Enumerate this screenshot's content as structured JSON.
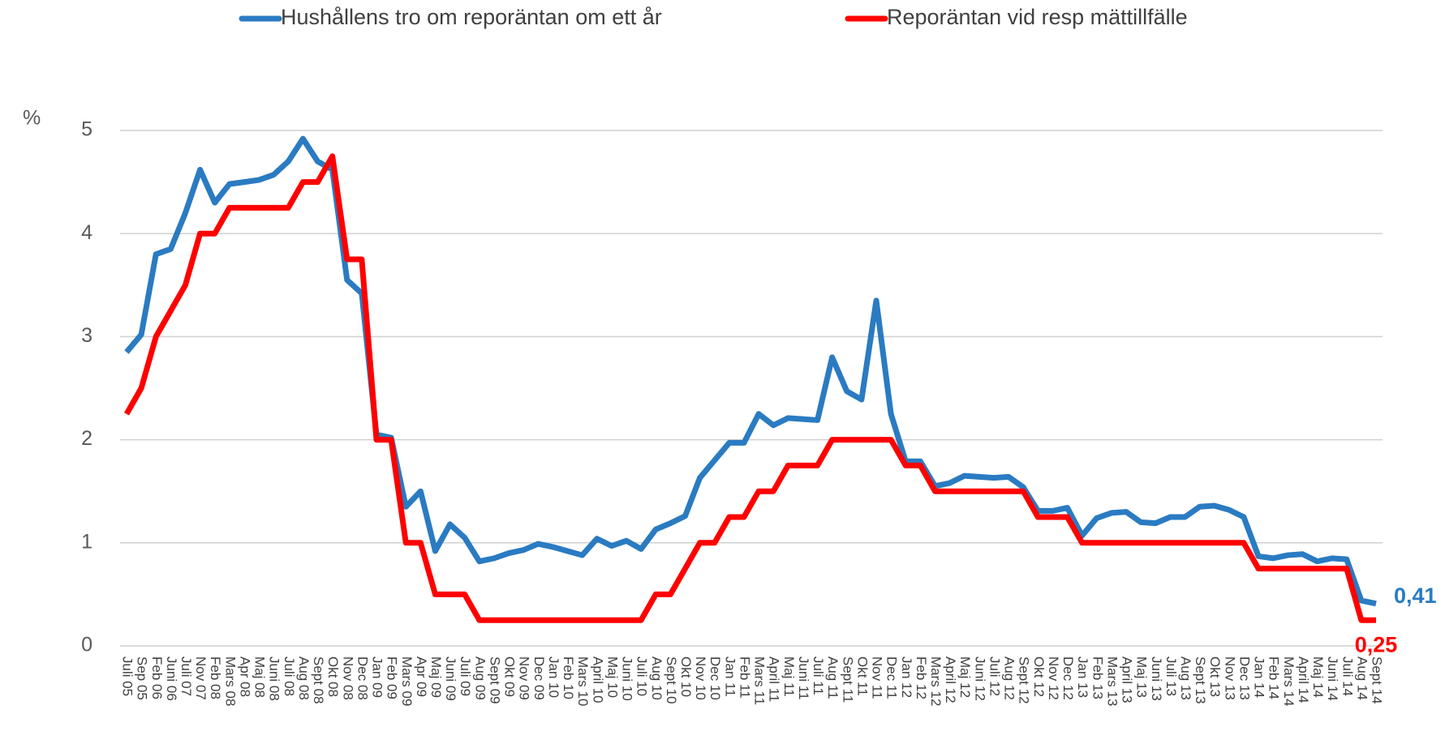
{
  "chart_data": {
    "type": "line",
    "ylabel": "%",
    "legend": "top",
    "grid": true,
    "ylim": [
      0,
      5
    ],
    "yticks": [
      0,
      1,
      2,
      3,
      4,
      5
    ],
    "categories": [
      "Juli 05",
      "Sep 05",
      "Feb 06",
      "Juni 06",
      "Juli 07",
      "Nov 07",
      "Feb 08",
      "Mars 08",
      "Apr 08",
      "Maj 08",
      "Juni 08",
      "Juli 08",
      "Aug 08",
      "Sept 08",
      "Okt 08",
      "Nov 08",
      "Dec 08",
      "Jan 09",
      "Feb 09",
      "Mars 09",
      "Apr 09",
      "Maj 09",
      "Juni 09",
      "Juli 09",
      "Aug 09",
      "Sept 09",
      "Okt 09",
      "Nov 09",
      "Dec 09",
      "Jan 10",
      "Feb 10",
      "Mars 10",
      "April 10",
      "Maj 10",
      "Juni 10",
      "Juli 10",
      "Aug 10",
      "Sept 10",
      "Okt 10",
      "Nov 10",
      "Dec 10",
      "Jan 11",
      "Feb 11",
      "Mars 11",
      "April 11",
      "Maj 11",
      "Juni 11",
      "Juli 11",
      "Aug 11",
      "Sept 11",
      "Okt 11",
      "Nov 11",
      "Dec 11",
      "Jan 12",
      "Feb 12",
      "Mars 12",
      "April 12",
      "Maj 12",
      "Juni 12",
      "Juli 12",
      "Aug 12",
      "Sept 12",
      "Okt 12",
      "Nov 12",
      "Dec 12",
      "Jan 13",
      "Feb 13",
      "Mars 13",
      "April 13",
      "Maj 13",
      "Juni 13",
      "Juli 13",
      "Aug 13",
      "Sept 13",
      "Okt 13",
      "Nov 13",
      "Dec 13",
      "Jan 14",
      "Feb 14",
      "Mars 14",
      "April 14",
      "Maj 14",
      "Juni 14",
      "Juli 14",
      "Aug 14",
      "Sept 14"
    ],
    "series": [
      {
        "name": "Hushållens tro om reporäntan om ett år",
        "color": "#2a7bc2",
        "values": [
          2.85,
          3.02,
          3.8,
          3.85,
          4.2,
          4.62,
          4.3,
          4.48,
          4.5,
          4.52,
          4.57,
          4.7,
          4.92,
          4.7,
          4.62,
          3.55,
          3.42,
          2.05,
          2.02,
          1.35,
          1.5,
          0.92,
          1.18,
          1.05,
          0.82,
          0.85,
          0.9,
          0.93,
          0.99,
          0.96,
          0.92,
          0.88,
          1.04,
          0.97,
          1.02,
          0.94,
          1.13,
          1.19,
          1.26,
          1.63,
          1.8,
          1.97,
          1.97,
          2.25,
          2.14,
          2.21,
          2.2,
          2.19,
          2.8,
          2.47,
          2.39,
          3.35,
          2.25,
          1.79,
          1.79,
          1.55,
          1.58,
          1.65,
          1.64,
          1.63,
          1.64,
          1.54,
          1.31,
          1.31,
          1.34,
          1.07,
          1.24,
          1.29,
          1.3,
          1.2,
          1.19,
          1.25,
          1.25,
          1.35,
          1.36,
          1.32,
          1.25,
          0.87,
          0.85,
          0.88,
          0.89,
          0.82,
          0.85,
          0.84,
          0.44,
          0.41
        ],
        "value_labels": [
          null,
          null,
          null,
          null,
          null,
          null,
          null,
          null,
          null,
          null,
          null,
          null,
          null,
          null,
          null,
          null,
          null,
          null,
          null,
          null,
          null,
          null,
          null,
          null,
          null,
          null,
          null,
          null,
          null,
          null,
          null,
          null,
          null,
          null,
          null,
          null,
          null,
          null,
          null,
          null,
          null,
          null,
          null,
          null,
          null,
          null,
          null,
          null,
          null,
          null,
          null,
          null,
          null,
          null,
          null,
          null,
          null,
          null,
          null,
          null,
          null,
          null,
          null,
          null,
          null,
          null,
          null,
          null,
          null,
          null,
          null,
          null,
          null,
          null,
          null,
          null,
          null,
          null,
          null,
          null,
          null,
          null,
          null,
          null,
          null,
          "0,41"
        ]
      },
      {
        "name": "Reporäntan vid resp mättillfälle",
        "color": "#ff0000",
        "values": [
          2.25,
          2.5,
          3.0,
          3.25,
          3.5,
          4.0,
          4.0,
          4.25,
          4.25,
          4.25,
          4.25,
          4.25,
          4.5,
          4.5,
          4.75,
          3.75,
          3.75,
          2.0,
          2.0,
          1.0,
          1.0,
          0.5,
          0.5,
          0.5,
          0.25,
          0.25,
          0.25,
          0.25,
          0.25,
          0.25,
          0.25,
          0.25,
          0.25,
          0.25,
          0.25,
          0.25,
          0.5,
          0.5,
          0.75,
          1.0,
          1.0,
          1.25,
          1.25,
          1.5,
          1.5,
          1.75,
          1.75,
          1.75,
          2.0,
          2.0,
          2.0,
          2.0,
          2.0,
          1.75,
          1.75,
          1.5,
          1.5,
          1.5,
          1.5,
          1.5,
          1.5,
          1.5,
          1.25,
          1.25,
          1.25,
          1.0,
          1.0,
          1.0,
          1.0,
          1.0,
          1.0,
          1.0,
          1.0,
          1.0,
          1.0,
          1.0,
          1.0,
          0.75,
          0.75,
          0.75,
          0.75,
          0.75,
          0.75,
          0.75,
          0.25,
          0.25
        ],
        "value_labels": [
          null,
          null,
          null,
          null,
          null,
          null,
          null,
          null,
          null,
          null,
          null,
          null,
          null,
          null,
          null,
          null,
          null,
          null,
          null,
          null,
          null,
          null,
          null,
          null,
          null,
          null,
          null,
          null,
          null,
          null,
          null,
          null,
          null,
          null,
          null,
          null,
          null,
          null,
          null,
          null,
          null,
          null,
          null,
          null,
          null,
          null,
          null,
          null,
          null,
          null,
          null,
          null,
          null,
          null,
          null,
          null,
          null,
          null,
          null,
          null,
          null,
          null,
          null,
          null,
          null,
          null,
          null,
          null,
          null,
          null,
          null,
          null,
          null,
          null,
          null,
          null,
          null,
          null,
          null,
          null,
          null,
          null,
          null,
          null,
          null,
          "0,25"
        ]
      }
    ]
  }
}
